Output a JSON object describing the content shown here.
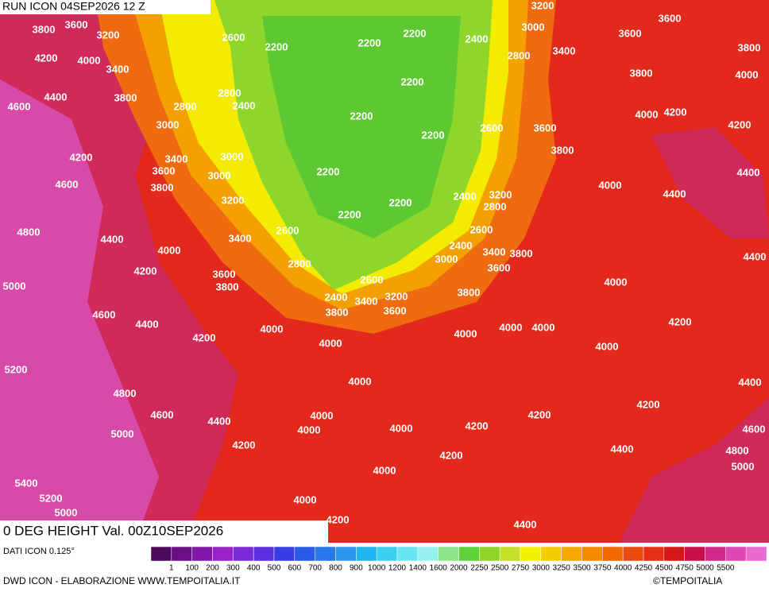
{
  "header": {
    "run": "RUN ICON 04SEP2026 12 Z",
    "field": "0 DEG HEIGHT Val. 00Z10SEP2026"
  },
  "footer": {
    "source": "DATI ICON 0.125°",
    "credit": "DWD ICON - ELABORAZIONE WWW.TEMPOITALIA.IT",
    "copyright": "©TEMPOITALIA"
  },
  "colorbar": {
    "labels": [
      "1",
      "100",
      "200",
      "300",
      "400",
      "500",
      "600",
      "700",
      "800",
      "900",
      "1000",
      "1200",
      "1400",
      "1600",
      "2000",
      "2250",
      "2500",
      "2750",
      "3000",
      "3250",
      "3500",
      "3750",
      "4000",
      "4250",
      "4500",
      "4750",
      "5000",
      "5500"
    ],
    "colors": [
      "#4b0a5e",
      "#6a0f86",
      "#8318a8",
      "#9b22c8",
      "#7a2ad8",
      "#5a30e0",
      "#3a3ce6",
      "#2a5ae8",
      "#2a78ea",
      "#2a96ec",
      "#22b4ee",
      "#3cd0f0",
      "#6ae4f2",
      "#98f0f0",
      "#8ee68a",
      "#5ed03a",
      "#8ed62a",
      "#c4e028",
      "#f4f000",
      "#f4cc00",
      "#f4a800",
      "#f48a00",
      "#f06a00",
      "#ea4a10",
      "#e43018",
      "#d41818",
      "#c8104a",
      "#d02a8a",
      "#dc48b4",
      "#e86ad0"
    ]
  },
  "contour_labels": [
    "3200",
    "3800",
    "3600",
    "3200",
    "2600",
    "2200",
    "2200",
    "2200",
    "2400",
    "3000",
    "3600",
    "3600",
    "3800",
    "4200",
    "4000",
    "3400",
    "2200",
    "2800",
    "3400",
    "3800",
    "4000",
    "4400",
    "3800",
    "2800",
    "2400",
    "4600",
    "2800",
    "2200",
    "4000",
    "4200",
    "4200",
    "3000",
    "2200",
    "2600",
    "3600",
    "3800",
    "4200",
    "3400",
    "3000",
    "3600",
    "3000",
    "2200",
    "4400",
    "4600",
    "3800",
    "2400",
    "3200",
    "4000",
    "4400",
    "3200",
    "2200",
    "2800",
    "2200",
    "4800",
    "2600",
    "4400",
    "3400",
    "2600",
    "2400",
    "4000",
    "3400",
    "3800",
    "4400",
    "2800",
    "3000",
    "4200",
    "3600",
    "3600",
    "5000",
    "3800",
    "4000",
    "2600",
    "2400",
    "3400",
    "3200",
    "3800",
    "3800",
    "3600",
    "4600",
    "4400",
    "4000",
    "4000",
    "4000",
    "4000",
    "4200",
    "4200",
    "4000",
    "4000",
    "5200",
    "4000",
    "4400",
    "4800",
    "4200",
    "4600",
    "4000",
    "4200",
    "4400",
    "4000",
    "4000",
    "4200",
    "4600",
    "5000",
    "4200",
    "4400",
    "4200",
    "4800",
    "5000",
    "5400",
    "4000",
    "5200",
    "4000",
    "5000",
    "4200",
    "4400"
  ]
}
